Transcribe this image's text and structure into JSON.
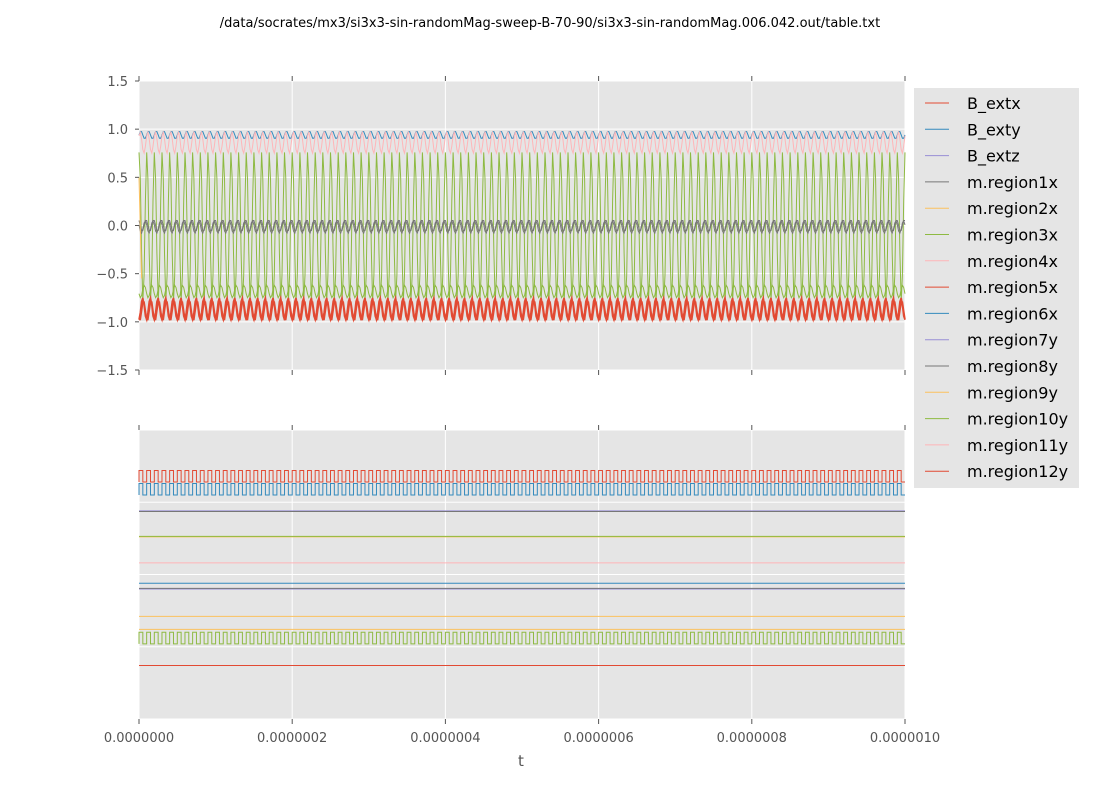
{
  "chart_data": {
    "title": "/data/socrates/mx3/si3x3-sin-randomMag-sweep-B-70-90/si3x3-sin-randomMag.006.042.out/table.txt",
    "xlabel": "t",
    "x_ticks": [
      "0.0000000",
      "0.0000002",
      "0.0000004",
      "0.0000006",
      "0.0000008",
      "0.0000010"
    ],
    "xlim": [
      0,
      1e-06
    ],
    "legend_position": "outside-right",
    "grid": true,
    "series_names": [
      "B_extx",
      "B_exty",
      "B_extz",
      "m.region1x",
      "m.region2x",
      "m.region3x",
      "m.region4x",
      "m.region5x",
      "m.region6x",
      "m.region7y",
      "m.region8y",
      "m.region9y",
      "m.region10y",
      "m.region11y",
      "m.region12y"
    ],
    "colors": [
      "#E24A33",
      "#348ABD",
      "#988ED5",
      "#777777",
      "#FBC15E",
      "#8EBA42",
      "#FFB5B8",
      "#E24A33",
      "#348ABD",
      "#988ED5",
      "#777777",
      "#FBC15E",
      "#8EBA42",
      "#FFB5B8",
      "#E24A33"
    ],
    "subplots": [
      {
        "type": "line",
        "ylim": [
          -1.5,
          1.5
        ],
        "y_ticks": [
          "1.5",
          "1.0",
          "0.5",
          "0.0",
          "−0.5",
          "−1.0",
          "−1.5"
        ],
        "y_tick_values": [
          1.5,
          1.0,
          0.5,
          0.0,
          -0.5,
          -1.0,
          -1.5
        ],
        "oscillation_periods": 100,
        "series": [
          {
            "name": "B_exty",
            "min": 0.9,
            "max": 0.98
          },
          {
            "name": "m.region4x",
            "min": 0.75,
            "max": 0.97
          },
          {
            "name": "m.region3x",
            "min": -0.8,
            "max": 0.77
          },
          {
            "name": "m.region1x",
            "min": -0.06,
            "max": 0.06
          },
          {
            "name": "m.region8y",
            "min": -0.08,
            "max": 0.05
          },
          {
            "name": "m.region10y",
            "min": -0.75,
            "max": -0.62
          },
          {
            "name": "m.region5x",
            "min": -0.99,
            "max": -0.78
          },
          {
            "name": "m.region12y",
            "min": -0.98,
            "max": -0.75
          },
          {
            "name": "m.region2x",
            "min": -0.55,
            "max": 0.5
          }
        ]
      },
      {
        "type": "line",
        "oscillation_periods": 100,
        "series": [
          {
            "name": "B_extx",
            "kind": "square",
            "low": 0.82,
            "high": 0.86
          },
          {
            "name": "B_exty",
            "kind": "square",
            "low": 0.775,
            "high": 0.815
          },
          {
            "name": "B_extz",
            "kind": "flat",
            "value": 0.72
          },
          {
            "name": "m.region1x",
            "kind": "flat",
            "value": 0.718
          },
          {
            "name": "m.region2x",
            "kind": "flat",
            "value": 0.63
          },
          {
            "name": "m.region3x",
            "kind": "flat",
            "value": 0.632
          },
          {
            "name": "m.region4x",
            "kind": "flat",
            "value": 0.54
          },
          {
            "name": "m.region6x",
            "kind": "flat",
            "value": 0.47
          },
          {
            "name": "m.region7y",
            "kind": "flat",
            "value": 0.45
          },
          {
            "name": "m.region8y",
            "kind": "flat",
            "value": 0.452
          },
          {
            "name": "m.region9y",
            "kind": "flat",
            "value": 0.355
          },
          {
            "name": "m.region9y",
            "kind": "flat",
            "value": 0.31
          },
          {
            "name": "m.region10y",
            "kind": "square",
            "low": 0.26,
            "high": 0.3
          },
          {
            "name": "m.region5x",
            "kind": "flat",
            "value": 0.185
          }
        ]
      }
    ]
  }
}
